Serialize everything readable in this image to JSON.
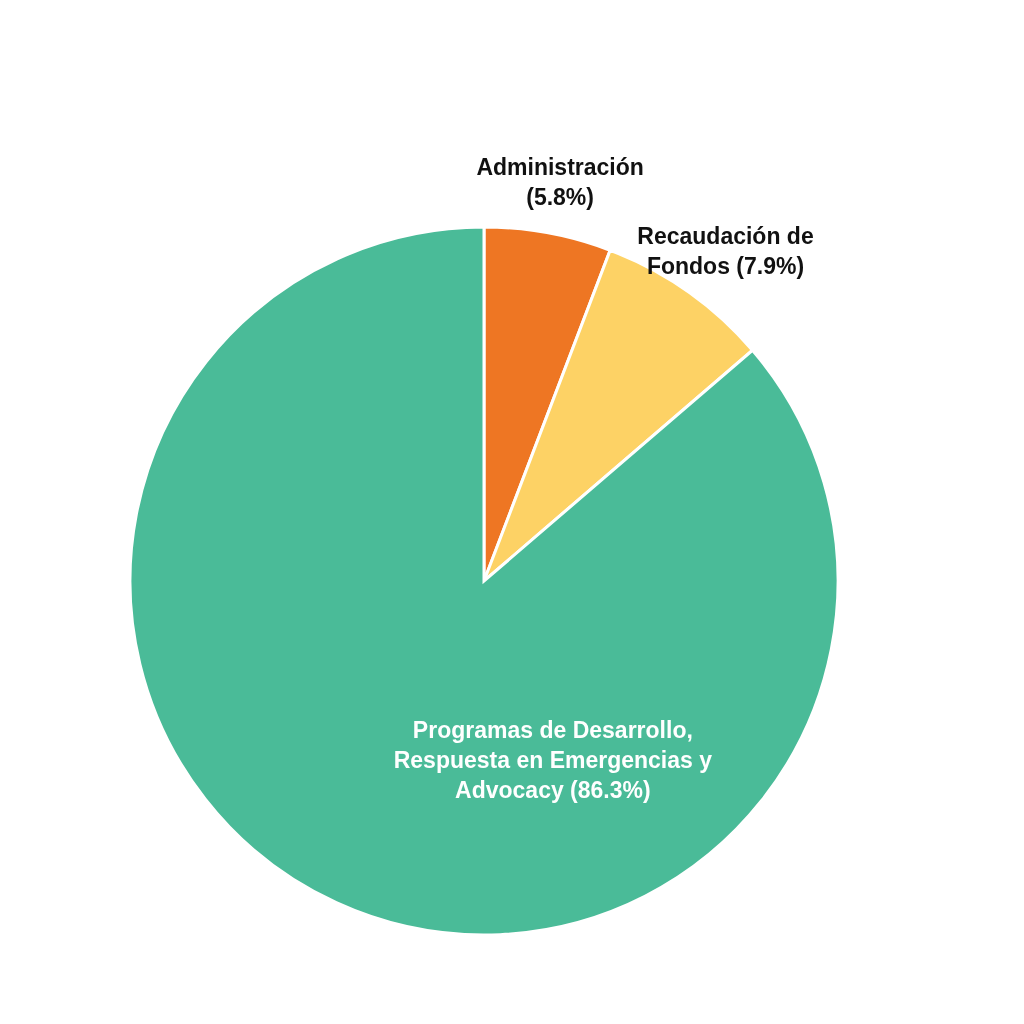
{
  "chart_data": {
    "type": "pie",
    "categories": [
      "Administración",
      "Recaudación de Fondos",
      "Programas de Desarrollo, Respuesta en Emergencias y Advocacy"
    ],
    "values": [
      5.8,
      7.9,
      86.3
    ],
    "value_labels": [
      "(5.8%)",
      "(7.9%)",
      "(86.3%)"
    ],
    "colors": [
      "#ee7623",
      "#fdd265",
      "#4abb98"
    ],
    "legend": false
  }
}
